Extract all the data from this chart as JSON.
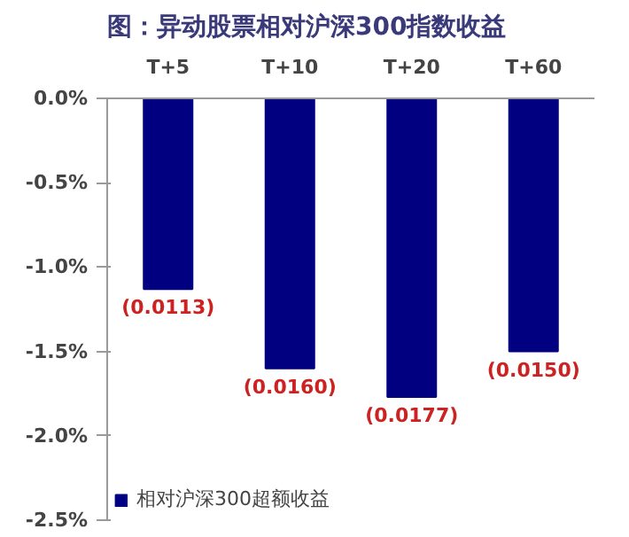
{
  "chart_data": {
    "type": "bar",
    "title": "图：异动股票相对沪深300指数收益",
    "categories": [
      "T+5",
      "T+10",
      "T+20",
      "T+60"
    ],
    "series": [
      {
        "name": "相对沪深300超额收益",
        "color": "#000080",
        "values": [
          -0.0113,
          -0.016,
          -0.0177,
          -0.015
        ],
        "value_labels": [
          "(0.0113)",
          "(0.0160)",
          "(0.0177)",
          "(0.0150)"
        ]
      }
    ],
    "ylim": [
      -0.025,
      0
    ],
    "yticks": [
      {
        "value": 0,
        "label": "0.0%"
      },
      {
        "value": -0.005,
        "label": "-0.5%"
      },
      {
        "value": -0.01,
        "label": "-1.0%"
      },
      {
        "value": -0.015,
        "label": "-1.5%"
      },
      {
        "value": -0.02,
        "label": "-2.0%"
      },
      {
        "value": -0.025,
        "label": "-2.5%"
      }
    ],
    "grid": false,
    "legend": "bottom left"
  }
}
